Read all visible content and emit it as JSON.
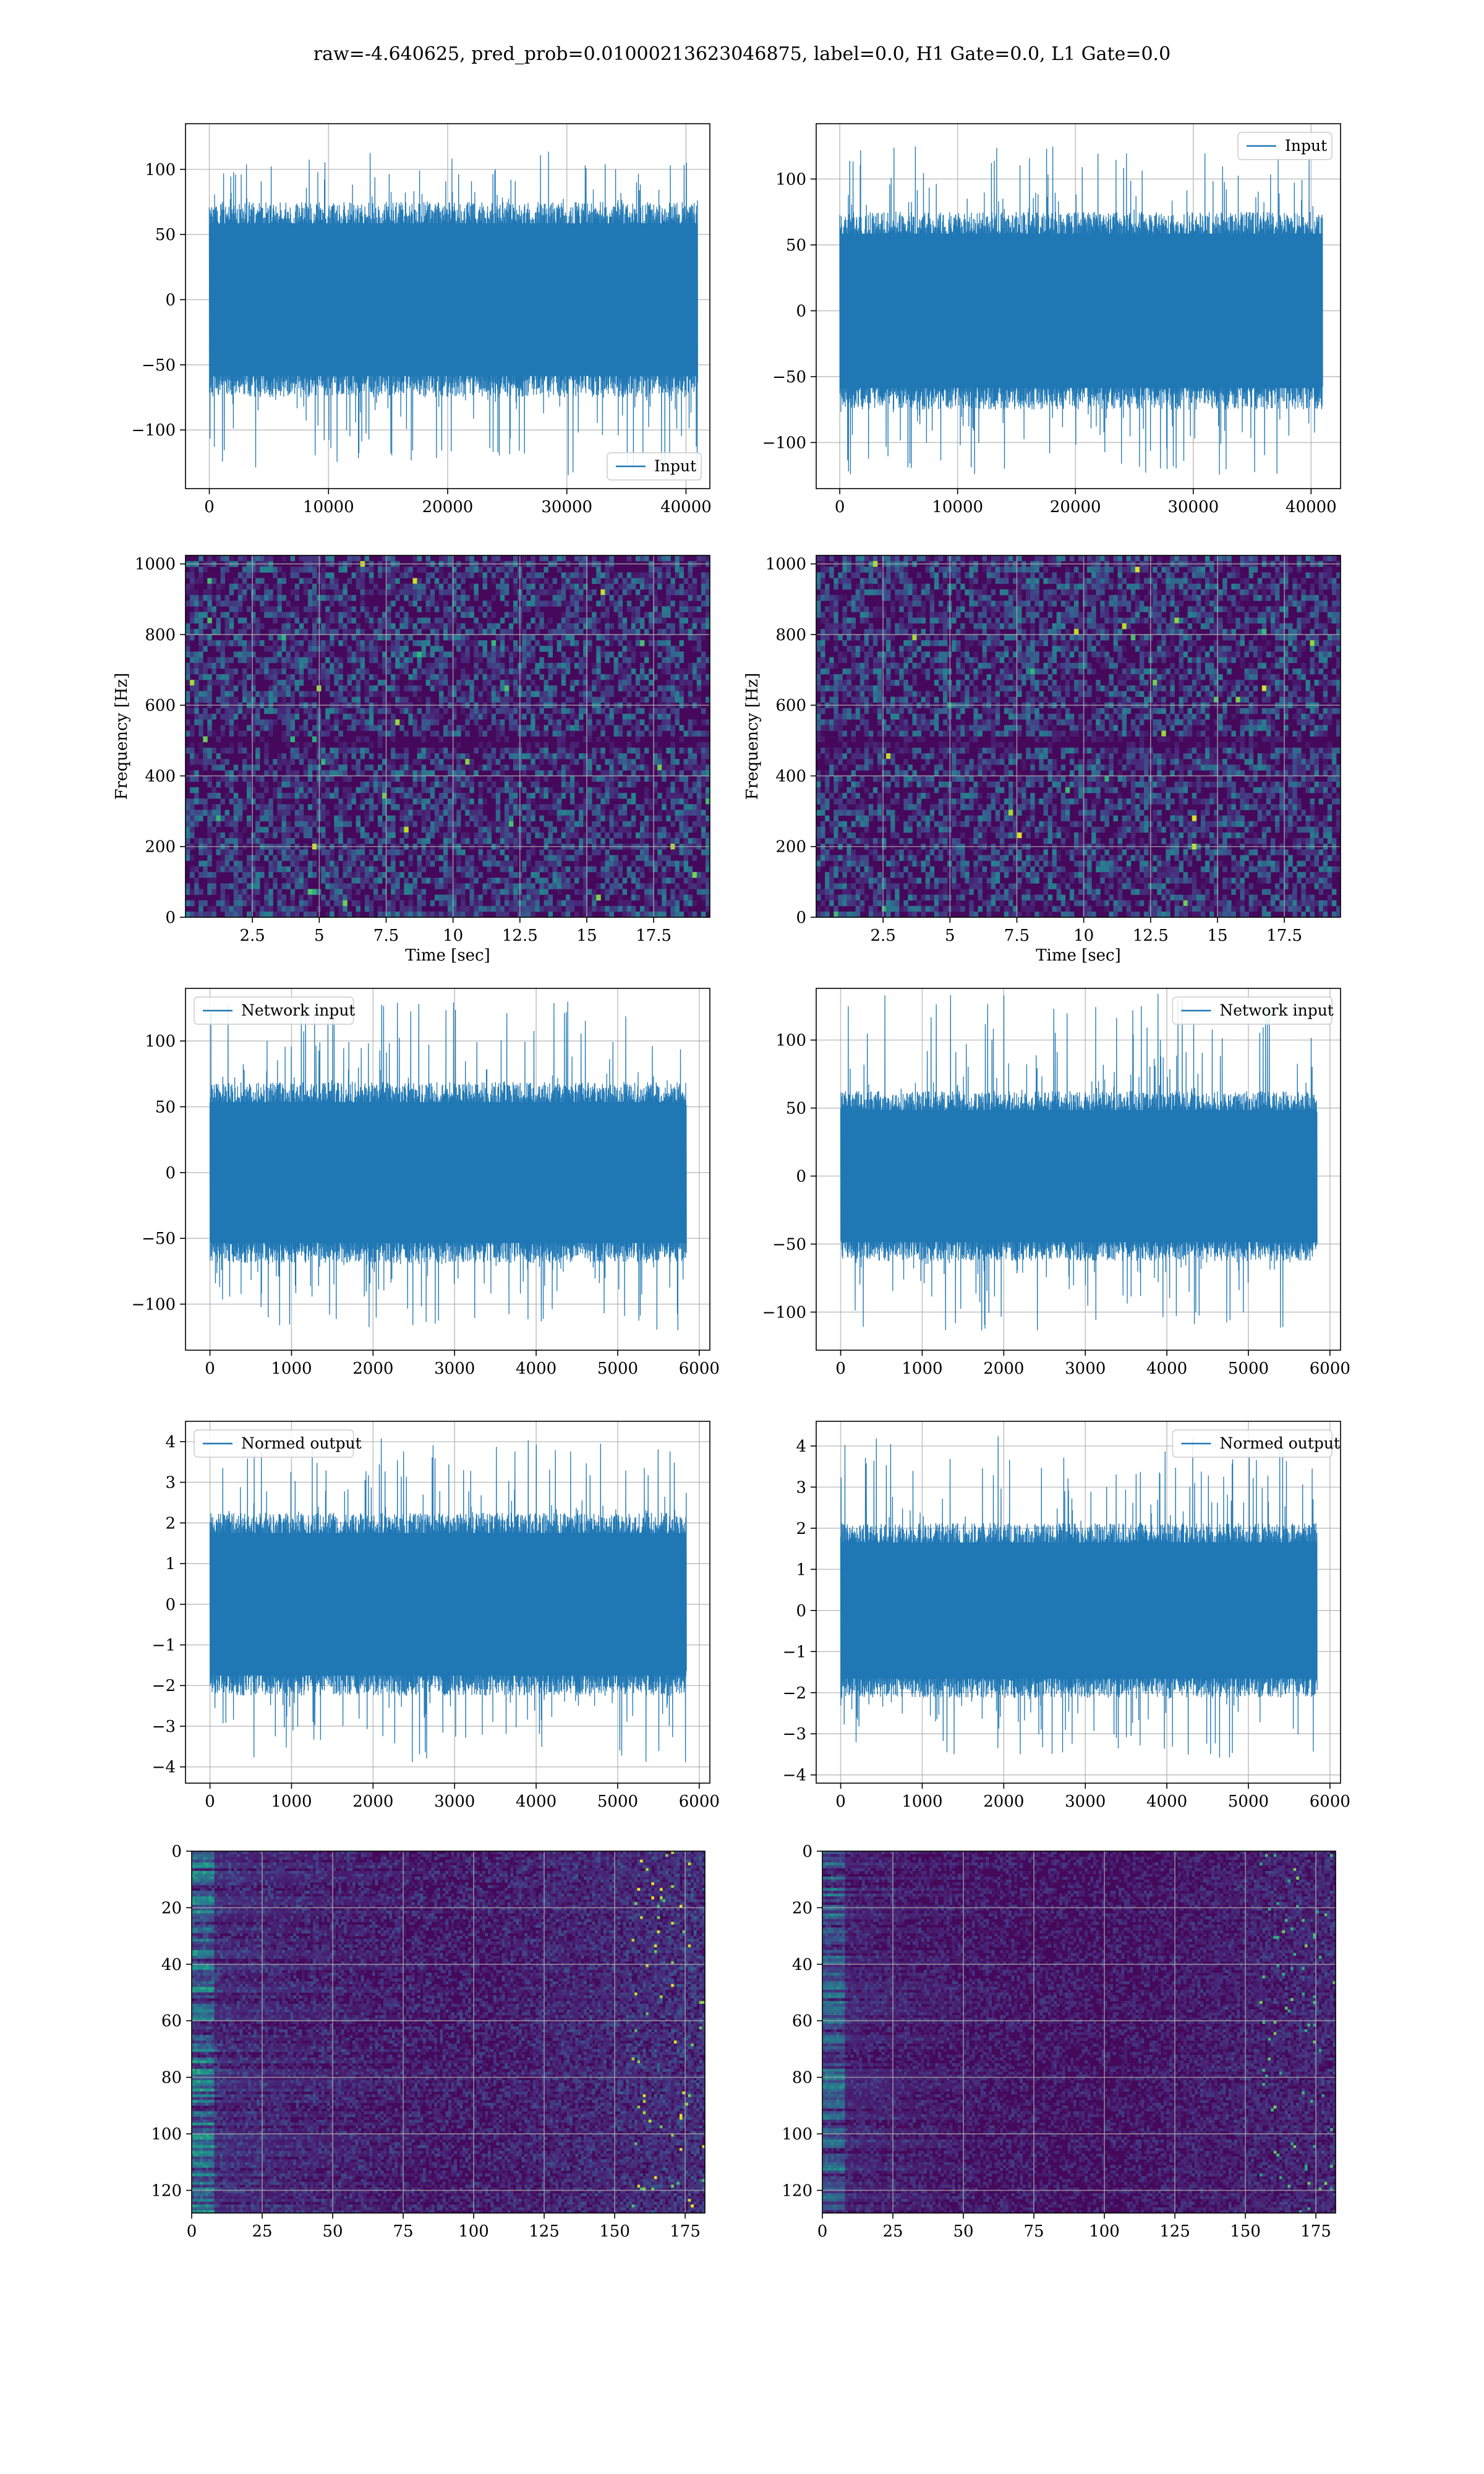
{
  "figure": {
    "title": "raw=-4.640625, pred_prob=0.01000213623046875, label=0.0, H1 Gate=0.0, L1 Gate=0.0",
    "colors": {
      "line": "#1f77b4",
      "grid": "#b0b0b0",
      "axes": "#000000"
    }
  },
  "chart_data": [
    {
      "id": "input-h1",
      "type": "line",
      "series": [
        {
          "name": "Input"
        }
      ],
      "legend": "lower-right",
      "xlim": [
        -2000,
        42000
      ],
      "ylim": [
        -145,
        135
      ],
      "xticks": [
        0,
        10000,
        20000,
        30000,
        40000
      ],
      "yticks": [
        -100,
        -50,
        0,
        50,
        100
      ],
      "x_range": [
        0,
        40960
      ],
      "band": [
        -60,
        60
      ],
      "spike_max": 115,
      "spike_min": -135,
      "xlabel": "",
      "ylabel": "",
      "grid": true
    },
    {
      "id": "input-l1",
      "type": "line",
      "series": [
        {
          "name": "Input"
        }
      ],
      "legend": "upper-right",
      "xlim": [
        -2000,
        42500
      ],
      "ylim": [
        -135,
        142
      ],
      "xticks": [
        0,
        10000,
        20000,
        30000,
        40000
      ],
      "yticks": [
        -100,
        -50,
        0,
        50,
        100
      ],
      "x_range": [
        0,
        40960
      ],
      "band": [
        -60,
        60
      ],
      "spike_max": 125,
      "spike_min": -125,
      "xlabel": "",
      "ylabel": "",
      "grid": true
    },
    {
      "id": "spec-h1",
      "type": "heatmap",
      "colormap": "viridis",
      "xlim": [
        0,
        19.6
      ],
      "ylim": [
        0,
        1024
      ],
      "xticks": [
        2.5,
        5.0,
        7.5,
        10.0,
        12.5,
        15.0,
        17.5
      ],
      "yticks": [
        0,
        200,
        400,
        600,
        800,
        1000
      ],
      "xlabel": "Time [sec]",
      "ylabel": "Frequency [Hz]",
      "grid": true
    },
    {
      "id": "spec-l1",
      "type": "heatmap",
      "colormap": "viridis",
      "xlim": [
        0,
        19.6
      ],
      "ylim": [
        0,
        1024
      ],
      "xticks": [
        2.5,
        5.0,
        7.5,
        10.0,
        12.5,
        15.0,
        17.5
      ],
      "yticks": [
        0,
        200,
        400,
        600,
        800,
        1000
      ],
      "xlabel": "Time [sec]",
      "ylabel": "Frequency [Hz]",
      "grid": true
    },
    {
      "id": "netin-h1",
      "type": "line",
      "series": [
        {
          "name": "Network input"
        }
      ],
      "legend": "upper-left",
      "xlim": [
        -300,
        6130
      ],
      "ylim": [
        -135,
        140
      ],
      "xticks": [
        0,
        1000,
        2000,
        3000,
        4000,
        5000,
        6000
      ],
      "yticks": [
        -100,
        -50,
        0,
        50,
        100
      ],
      "x_range": [
        0,
        5840
      ],
      "band": [
        -55,
        55
      ],
      "spike_max": 130,
      "spike_min": -120,
      "xlabel": "",
      "ylabel": "",
      "grid": true
    },
    {
      "id": "netin-l1",
      "type": "line",
      "series": [
        {
          "name": "Network input"
        }
      ],
      "legend": "upper-right",
      "xlim": [
        -300,
        6130
      ],
      "ylim": [
        -128,
        138
      ],
      "xticks": [
        0,
        1000,
        2000,
        3000,
        4000,
        5000,
        6000
      ],
      "yticks": [
        -100,
        -50,
        0,
        50,
        100
      ],
      "x_range": [
        0,
        5840
      ],
      "band": [
        -50,
        50
      ],
      "spike_max": 135,
      "spike_min": -115,
      "xlabel": "",
      "ylabel": "",
      "grid": true
    },
    {
      "id": "norm-h1",
      "type": "line",
      "series": [
        {
          "name": "Normed output"
        }
      ],
      "legend": "upper-left",
      "xlim": [
        -300,
        6130
      ],
      "ylim": [
        -4.4,
        4.5
      ],
      "xticks": [
        0,
        1000,
        2000,
        3000,
        4000,
        5000,
        6000
      ],
      "yticks": [
        -4,
        -3,
        -2,
        -1,
        0,
        1,
        2,
        3,
        4
      ],
      "x_range": [
        0,
        5840
      ],
      "band": [
        -1.8,
        1.8
      ],
      "spike_max": 4.1,
      "spike_min": -3.9,
      "xlabel": "",
      "ylabel": "",
      "grid": true
    },
    {
      "id": "norm-l1",
      "type": "line",
      "series": [
        {
          "name": "Normed output"
        }
      ],
      "legend": "upper-right",
      "xlim": [
        -300,
        6130
      ],
      "ylim": [
        -4.2,
        4.6
      ],
      "xticks": [
        0,
        1000,
        2000,
        3000,
        4000,
        5000,
        6000
      ],
      "yticks": [
        -4,
        -3,
        -2,
        -1,
        0,
        1,
        2,
        3,
        4
      ],
      "x_range": [
        0,
        5840
      ],
      "band": [
        -1.7,
        1.7
      ],
      "spike_max": 4.3,
      "spike_min": -3.6,
      "xlabel": "",
      "ylabel": "",
      "grid": true
    },
    {
      "id": "feat-h1",
      "type": "heatmap",
      "colormap": "viridis",
      "xlim": [
        0,
        182
      ],
      "ylim": [
        128,
        0
      ],
      "xticks": [
        0,
        25,
        50,
        75,
        100,
        125,
        150,
        175
      ],
      "yticks": [
        0,
        20,
        40,
        60,
        80,
        100,
        120
      ],
      "xlabel": "",
      "ylabel": "",
      "grid": true
    },
    {
      "id": "feat-l1",
      "type": "heatmap",
      "colormap": "viridis",
      "xlim": [
        0,
        182
      ],
      "ylim": [
        128,
        0
      ],
      "xticks": [
        0,
        25,
        50,
        75,
        100,
        125,
        150,
        175
      ],
      "yticks": [
        0,
        20,
        40,
        60,
        80,
        100,
        120
      ],
      "xlabel": "",
      "ylabel": "",
      "grid": true
    }
  ]
}
